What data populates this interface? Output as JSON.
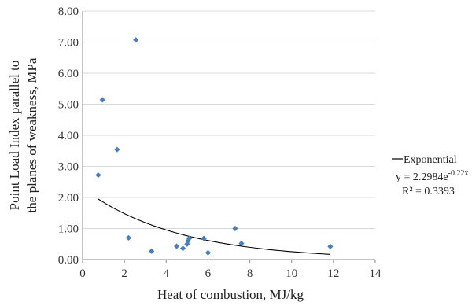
{
  "chart_data": {
    "type": "scatter",
    "xlabel": "Heat of combustion, MJ/kg",
    "ylabel_lines": [
      "Point Load Index parallel to",
      "the planes of weakness, MPa"
    ],
    "xlim": [
      0,
      14
    ],
    "ylim": [
      0,
      8
    ],
    "x_ticks": [
      "0",
      "2",
      "4",
      "6",
      "8",
      "10",
      "12",
      "14"
    ],
    "y_ticks": [
      "0.00",
      "1.00",
      "2.00",
      "3.00",
      "4.00",
      "5.00",
      "6.00",
      "7.00",
      "8.00"
    ],
    "grid": "horizontal",
    "marker_color": "#4a7ebb",
    "series": [
      {
        "points": [
          {
            "x": 0.75,
            "y": 2.72
          },
          {
            "x": 0.95,
            "y": 5.14
          },
          {
            "x": 1.65,
            "y": 3.54
          },
          {
            "x": 2.2,
            "y": 0.7
          },
          {
            "x": 2.55,
            "y": 7.07
          },
          {
            "x": 3.3,
            "y": 0.27
          },
          {
            "x": 4.5,
            "y": 0.43
          },
          {
            "x": 4.8,
            "y": 0.36
          },
          {
            "x": 5.0,
            "y": 0.5
          },
          {
            "x": 5.05,
            "y": 0.6
          },
          {
            "x": 5.1,
            "y": 0.68
          },
          {
            "x": 5.8,
            "y": 0.68
          },
          {
            "x": 6.0,
            "y": 0.22
          },
          {
            "x": 7.3,
            "y": 1.0
          },
          {
            "x": 7.6,
            "y": 0.52
          },
          {
            "x": 11.85,
            "y": 0.42
          }
        ]
      }
    ],
    "trendline": {
      "type": "exponential",
      "a": 2.2984,
      "b": -0.22,
      "x_range": [
        0.75,
        11.85
      ],
      "color": "#000000"
    },
    "legend": {
      "position": "right",
      "entry": "Exponential",
      "equation": "y = 2.2984e",
      "equation_exponent": "-0.22x",
      "r_squared": "R² = 0.3393"
    }
  }
}
